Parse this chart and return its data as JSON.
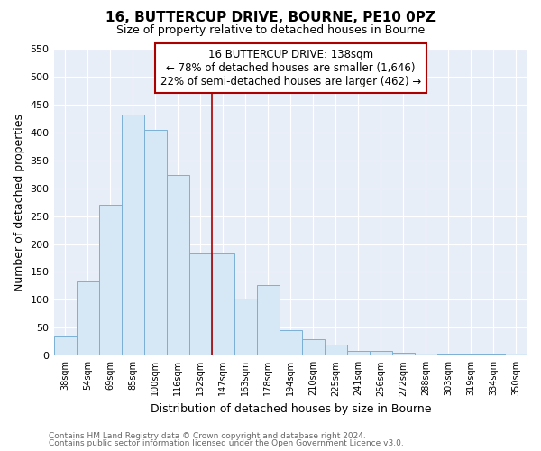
{
  "title": "16, BUTTERCUP DRIVE, BOURNE, PE10 0PZ",
  "subtitle": "Size of property relative to detached houses in Bourne",
  "xlabel": "Distribution of detached houses by size in Bourne",
  "ylabel": "Number of detached properties",
  "bar_color": "#d6e8f5",
  "bar_edge_color": "#7ab0d4",
  "categories": [
    "38sqm",
    "54sqm",
    "69sqm",
    "85sqm",
    "100sqm",
    "116sqm",
    "132sqm",
    "147sqm",
    "163sqm",
    "178sqm",
    "194sqm",
    "210sqm",
    "225sqm",
    "241sqm",
    "256sqm",
    "272sqm",
    "288sqm",
    "303sqm",
    "319sqm",
    "334sqm",
    "350sqm"
  ],
  "values": [
    35,
    133,
    270,
    432,
    404,
    323,
    183,
    183,
    103,
    127,
    45,
    30,
    20,
    8,
    8,
    5,
    3,
    2,
    2,
    2,
    3
  ],
  "ylim": [
    0,
    550
  ],
  "yticks": [
    0,
    50,
    100,
    150,
    200,
    250,
    300,
    350,
    400,
    450,
    500,
    550
  ],
  "property_line_index": 6,
  "property_line_color": "#aa0000",
  "annotation_title": "16 BUTTERCUP DRIVE: 138sqm",
  "annotation_line1": "← 78% of detached houses are smaller (1,646)",
  "annotation_line2": "22% of semi-detached houses are larger (462) →",
  "annotation_box_edgecolor": "#aa0000",
  "footer1": "Contains HM Land Registry data © Crown copyright and database right 2024.",
  "footer2": "Contains public sector information licensed under the Open Government Licence v3.0.",
  "background_color": "#ffffff",
  "plot_bg_color": "#e8eef8"
}
